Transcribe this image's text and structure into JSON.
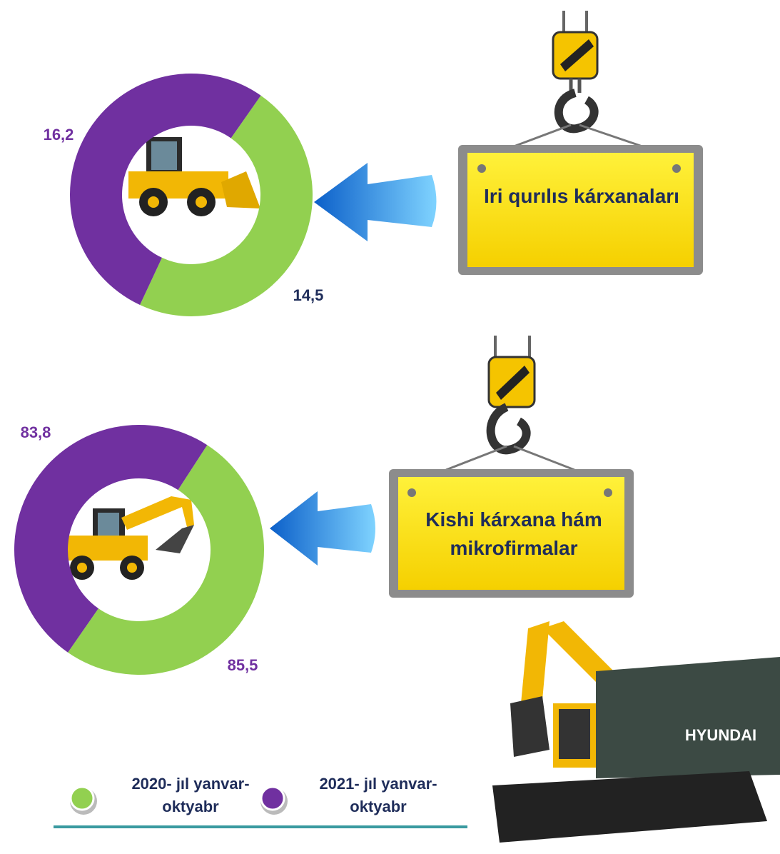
{
  "chart_data": [
    {
      "type": "pie",
      "title": "Iri qurılıs kárxanaları",
      "categories": [
        "2020- jıl yanvar-oktyabr",
        "2021- jıl yanvar-oktyabr"
      ],
      "values": [
        14.5,
        16.2
      ],
      "value_labels": [
        "14,5",
        "16,2"
      ],
      "colors": [
        "#92d050",
        "#7030a0"
      ]
    },
    {
      "type": "pie",
      "title": "Kishi kárxana hám mikrofirmalar",
      "categories": [
        "2020- jıl yanvar-oktyabr",
        "2021- jıl yanvar-oktyabr"
      ],
      "values": [
        85.5,
        83.8
      ],
      "value_labels": [
        "85,5",
        "83,8"
      ],
      "colors": [
        "#92d050",
        "#7030a0"
      ]
    }
  ]
}
